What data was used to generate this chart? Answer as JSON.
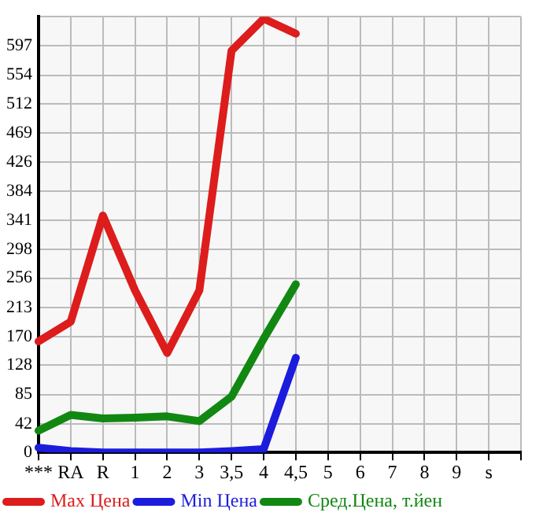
{
  "chart_data": {
    "type": "line",
    "categories": [
      "***",
      "RA",
      "R",
      "1",
      "2",
      "3",
      "3,5",
      "4",
      "4,5",
      "5",
      "6",
      "7",
      "8",
      "9",
      "s",
      null
    ],
    "series": [
      {
        "name": "Max Цена",
        "color": "#dd1c1c",
        "values": [
          163,
          192,
          348,
          238,
          146,
          238,
          590,
          637,
          615,
          null,
          null,
          null,
          null,
          null,
          null,
          null
        ]
      },
      {
        "name": "Min Цена",
        "color": "#1c1cdd",
        "values": [
          7,
          2,
          0,
          0,
          0,
          0,
          2,
          5,
          139,
          null,
          null,
          null,
          null,
          null,
          null,
          null
        ]
      },
      {
        "name": "Сред.Цена, т.йен",
        "color": "#118811",
        "values": [
          32,
          55,
          50,
          51,
          53,
          46,
          82,
          167,
          247,
          null,
          null,
          null,
          null,
          null,
          null,
          null
        ]
      }
    ],
    "ylim": [
      0,
      640
    ],
    "yticks": [
      0,
      42,
      85,
      128,
      170,
      213,
      256,
      298,
      341,
      384,
      426,
      469,
      512,
      554,
      597,
      {
        "value": 640,
        "label": null
      }
    ],
    "grid": true,
    "legend": "bottom",
    "marker": "none",
    "line_style": "solid"
  }
}
